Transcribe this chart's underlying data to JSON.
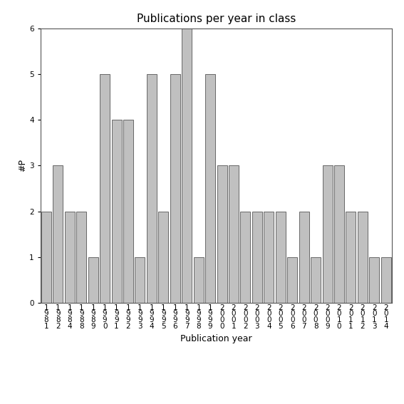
{
  "years": [
    "1\n9\n8\n1",
    "1\n9\n8\n2",
    "1\n9\n8\n4",
    "1\n9\n8\n8",
    "1\n9\n8\n9",
    "1\n9\n9\n0",
    "1\n9\n9\n1",
    "1\n9\n9\n2",
    "1\n9\n9\n3",
    "1\n9\n9\n4",
    "1\n9\n9\n5",
    "1\n9\n9\n6",
    "1\n9\n9\n7",
    "1\n9\n9\n8",
    "1\n9\n9\n9",
    "2\n0\n0\n0",
    "2\n0\n0\n1",
    "2\n0\n0\n2",
    "2\n0\n0\n3",
    "2\n0\n0\n4",
    "2\n0\n0\n5",
    "2\n0\n0\n6",
    "2\n0\n0\n7",
    "2\n0\n0\n8",
    "2\n0\n0\n9",
    "2\n0\n1\n0",
    "2\n0\n1\n1",
    "2\n0\n1\n2",
    "2\n0\n1\n3",
    "2\n0\n1\n4"
  ],
  "values": [
    2,
    3,
    2,
    2,
    1,
    5,
    4,
    4,
    1,
    5,
    2,
    5,
    6,
    1,
    5,
    3,
    3,
    2,
    2,
    2,
    2,
    1,
    2,
    1,
    3,
    3,
    2,
    2,
    1,
    1
  ],
  "bar_color": "#c0c0c0",
  "bar_edgecolor": "#555555",
  "title": "Publications per year in class",
  "xlabel": "Publication year",
  "ylabel": "#P",
  "ylim": [
    0,
    6
  ],
  "yticks": [
    0,
    1,
    2,
    3,
    4,
    5,
    6
  ],
  "title_fontsize": 11,
  "label_fontsize": 9,
  "tick_fontsize": 7.5
}
